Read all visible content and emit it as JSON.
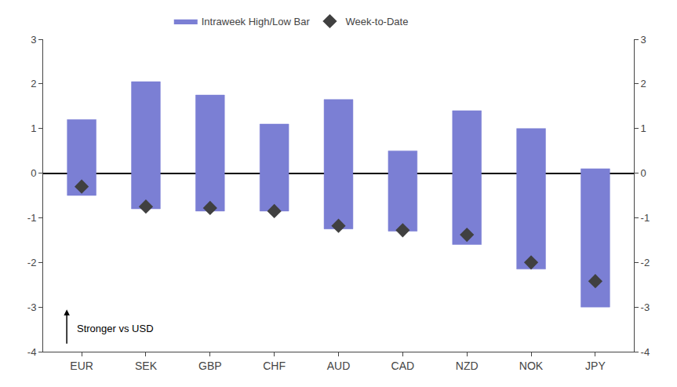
{
  "chart_data": {
    "type": "bar",
    "categories": [
      "EUR",
      "SEK",
      "GBP",
      "CHF",
      "AUD",
      "CAD",
      "NZD",
      "NOK",
      "JPY"
    ],
    "series": [
      {
        "name": "Intraweek High/Low Bar",
        "type": "bar",
        "color": "#7B7FD4",
        "low": [
          -0.5,
          -0.8,
          -0.85,
          -0.85,
          -1.25,
          -1.3,
          -1.6,
          -2.15,
          -3.0
        ],
        "high": [
          1.2,
          2.05,
          1.75,
          1.1,
          1.65,
          0.5,
          1.4,
          1.0,
          0.1
        ]
      },
      {
        "name": "Week-to-Date",
        "type": "scatter",
        "marker": "diamond",
        "color": "#404040",
        "values": [
          -0.3,
          -0.75,
          -0.78,
          -0.85,
          -1.18,
          -1.28,
          -1.38,
          -2.0,
          -2.42
        ]
      }
    ],
    "ylim": [
      -4,
      3
    ],
    "yticks": [
      -4,
      -3,
      -2,
      -1,
      0,
      1,
      2,
      3
    ],
    "y2lim": [
      -4,
      3
    ],
    "y2ticks": [
      -4,
      -3,
      -2,
      -1,
      0,
      1,
      2,
      3
    ],
    "grid": false,
    "legend": "top",
    "annotations": [
      {
        "text": "Stronger vs USD"
      }
    ]
  }
}
